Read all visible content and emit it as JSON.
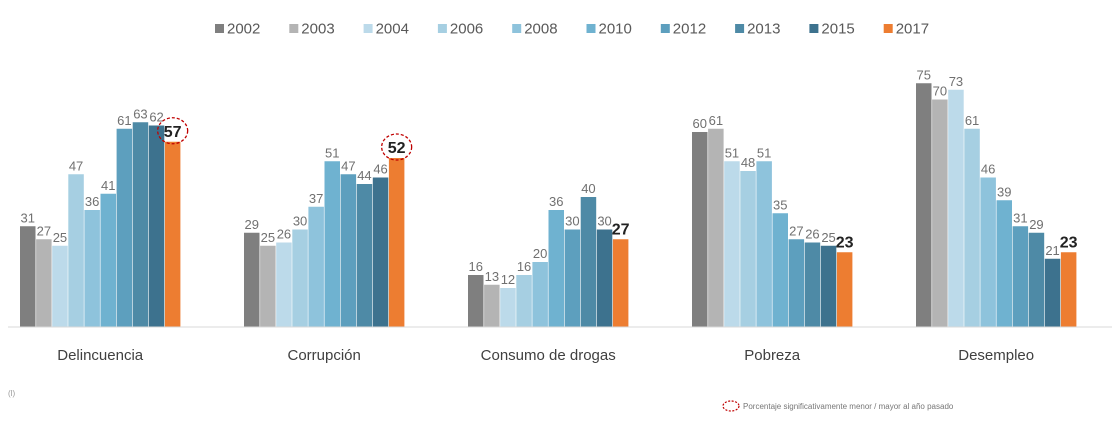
{
  "chart_data": {
    "type": "bar",
    "title": "",
    "xlabel": "",
    "ylabel": "",
    "ylim": [
      0,
      80
    ],
    "grid": false,
    "legend_position": "top",
    "categories": [
      "Delincuencia",
      "Corrupción",
      "Consumo de drogas",
      "Pobreza",
      "Desempleo"
    ],
    "series": [
      {
        "name": "2002",
        "color": "#7f7f7f",
        "values": [
          31,
          29,
          16,
          60,
          75
        ]
      },
      {
        "name": "2003",
        "color": "#b4b4b4",
        "values": [
          27,
          25,
          13,
          61,
          70
        ]
      },
      {
        "name": "2004",
        "color": "#bcdaea",
        "values": [
          25,
          26,
          12,
          51,
          73
        ]
      },
      {
        "name": "2006",
        "color": "#a6cfe2",
        "values": [
          47,
          30,
          16,
          48,
          61
        ]
      },
      {
        "name": "2008",
        "color": "#8ec3dc",
        "values": [
          36,
          37,
          20,
          51,
          46
        ]
      },
      {
        "name": "2010",
        "color": "#6fb2d0",
        "values": [
          41,
          51,
          36,
          35,
          39
        ]
      },
      {
        "name": "2012",
        "color": "#5d9fbe",
        "values": [
          61,
          47,
          30,
          27,
          31
        ]
      },
      {
        "name": "2013",
        "color": "#4e8aa6",
        "values": [
          63,
          44,
          40,
          26,
          29
        ]
      },
      {
        "name": "2015",
        "color": "#3d728e",
        "values": [
          62,
          46,
          30,
          25,
          21
        ]
      },
      {
        "name": "2017",
        "color": "#ed7d31",
        "values": [
          57,
          52,
          27,
          23,
          23
        ]
      }
    ],
    "highlighted": [
      {
        "category": "Delincuencia",
        "series": "2017"
      },
      {
        "category": "Corrupción",
        "series": "2017"
      }
    ]
  },
  "note": {
    "marker": "dashed-red-circle",
    "text": "Porcentaje significativamente menor / mayor al año pasado"
  },
  "source_mark": "(l)"
}
